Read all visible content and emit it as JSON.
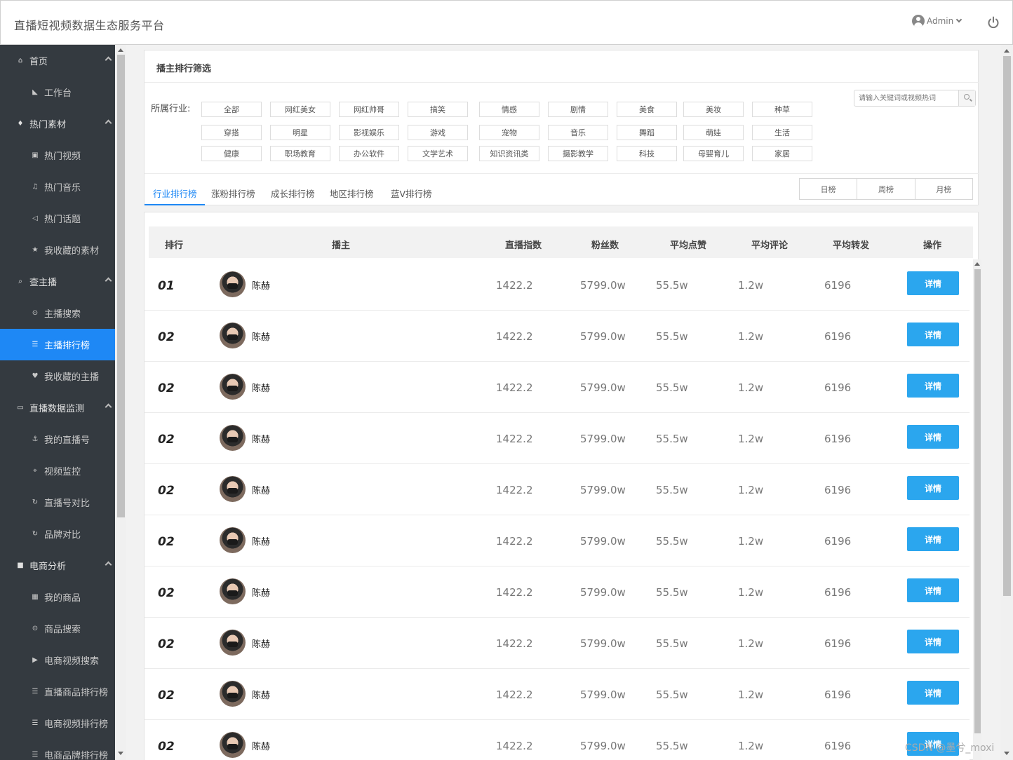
{
  "header": {
    "title": "直播短视频数据生态服务平台",
    "user": "Admin"
  },
  "sidebar": {
    "items": [
      {
        "label": "首页",
        "icon": "home-icon",
        "group": true
      },
      {
        "label": "工作台",
        "icon": "area-chart-icon",
        "group": false
      },
      {
        "label": "热门素材",
        "icon": "fire-icon",
        "group": true
      },
      {
        "label": "热门视频",
        "icon": "video-icon",
        "group": false
      },
      {
        "label": "热门音乐",
        "icon": "music-icon",
        "group": false
      },
      {
        "label": "热门话题",
        "icon": "bullhorn-icon",
        "group": false
      },
      {
        "label": "我收藏的素材",
        "icon": "star-icon",
        "group": false
      },
      {
        "label": "查主播",
        "icon": "search-icon",
        "group": true
      },
      {
        "label": "主播搜索",
        "icon": "zoom-icon",
        "group": false
      },
      {
        "label": "主播排行榜",
        "icon": "list-icon",
        "group": false,
        "active": true
      },
      {
        "label": "我收藏的主播",
        "icon": "heart-icon",
        "group": false
      },
      {
        "label": "直播数据监测",
        "icon": "laptop-icon",
        "group": true
      },
      {
        "label": "我的直播号",
        "icon": "anchor-icon",
        "group": false
      },
      {
        "label": "视频监控",
        "icon": "crosshair-icon",
        "group": false
      },
      {
        "label": "直播号对比",
        "icon": "refresh-icon",
        "group": false
      },
      {
        "label": "品牌对比",
        "icon": "refresh-icon",
        "group": false
      },
      {
        "label": "电商分析",
        "icon": "shopping-bag-icon",
        "group": true
      },
      {
        "label": "我的商品",
        "icon": "grid-icon",
        "group": false
      },
      {
        "label": "商品搜索",
        "icon": "zoom-icon",
        "group": false
      },
      {
        "label": "电商视频搜索",
        "icon": "play-circle-icon",
        "group": false
      },
      {
        "label": "直播商品排行榜",
        "icon": "list-icon",
        "group": false
      },
      {
        "label": "电商视频排行榜",
        "icon": "list-icon",
        "group": false
      },
      {
        "label": "电商品牌排行榜",
        "icon": "list-icon",
        "group": false
      }
    ]
  },
  "filter": {
    "title": "播主排行筛选",
    "industry_label": "所属行业:",
    "industries": [
      "全部",
      "网红美女",
      "网红帅哥",
      "搞笑",
      "情感",
      "剧情",
      "美食",
      "美妆",
      "种草",
      "穿搭",
      "明星",
      "影视娱乐",
      "游戏",
      "宠物",
      "音乐",
      "舞蹈",
      "萌娃",
      "生活",
      "健康",
      "职场教育",
      "办公软件",
      "文学艺术",
      "知识资讯类",
      "摄影教学",
      "科技",
      "母婴育儿",
      "家居"
    ],
    "search_placeholder": "请输入关键词或视频热词"
  },
  "tabs": [
    "行业排行榜",
    "涨粉排行榜",
    "成长排行榜",
    "地区排行榜",
    "蓝V排行榜"
  ],
  "periods": [
    "日榜",
    "周榜",
    "月榜"
  ],
  "table": {
    "headers": [
      "排行",
      "播主",
      "直播指数",
      "粉丝数",
      "平均点赞",
      "平均评论",
      "平均转发",
      "操作"
    ],
    "detail_label": "详情",
    "rows": [
      {
        "rank": "01",
        "name": "陈赫",
        "index": "1422.2",
        "fans": "5799.0w",
        "likes": "55.5w",
        "comments": "1.2w",
        "shares": "6196"
      },
      {
        "rank": "02",
        "name": "陈赫",
        "index": "1422.2",
        "fans": "5799.0w",
        "likes": "55.5w",
        "comments": "1.2w",
        "shares": "6196"
      },
      {
        "rank": "02",
        "name": "陈赫",
        "index": "1422.2",
        "fans": "5799.0w",
        "likes": "55.5w",
        "comments": "1.2w",
        "shares": "6196"
      },
      {
        "rank": "02",
        "name": "陈赫",
        "index": "1422.2",
        "fans": "5799.0w",
        "likes": "55.5w",
        "comments": "1.2w",
        "shares": "6196"
      },
      {
        "rank": "02",
        "name": "陈赫",
        "index": "1422.2",
        "fans": "5799.0w",
        "likes": "55.5w",
        "comments": "1.2w",
        "shares": "6196"
      },
      {
        "rank": "02",
        "name": "陈赫",
        "index": "1422.2",
        "fans": "5799.0w",
        "likes": "55.5w",
        "comments": "1.2w",
        "shares": "6196"
      },
      {
        "rank": "02",
        "name": "陈赫",
        "index": "1422.2",
        "fans": "5799.0w",
        "likes": "55.5w",
        "comments": "1.2w",
        "shares": "6196"
      },
      {
        "rank": "02",
        "name": "陈赫",
        "index": "1422.2",
        "fans": "5799.0w",
        "likes": "55.5w",
        "comments": "1.2w",
        "shares": "6196"
      },
      {
        "rank": "02",
        "name": "陈赫",
        "index": "1422.2",
        "fans": "5799.0w",
        "likes": "55.5w",
        "comments": "1.2w",
        "shares": "6196"
      },
      {
        "rank": "02",
        "name": "陈赫",
        "index": "1422.2",
        "fans": "5799.0w",
        "likes": "55.5w",
        "comments": "1.2w",
        "shares": "6196"
      }
    ]
  },
  "watermark": "CSDN @墨兮_moxi",
  "colors": {
    "accent": "#1e88f5",
    "button": "#2ba6ee",
    "sidebar": "#343a40"
  }
}
